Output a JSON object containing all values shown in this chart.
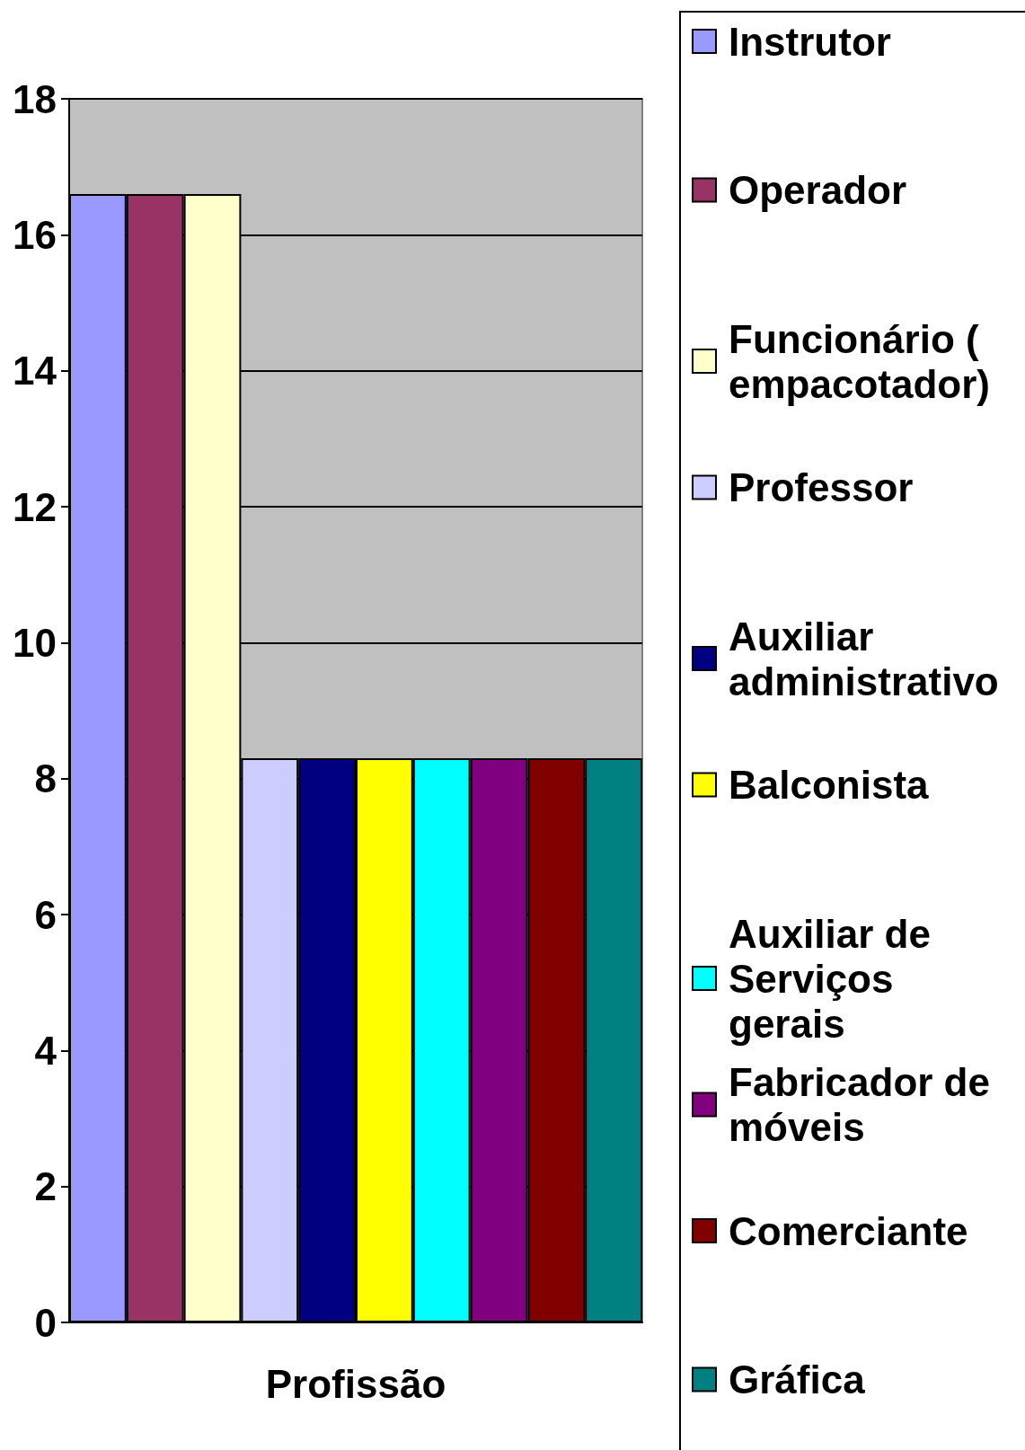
{
  "chart_data": {
    "type": "bar",
    "xlabel": "Profissão",
    "categories": [
      null,
      null,
      null,
      null,
      null,
      null,
      null,
      null,
      null,
      null
    ],
    "stacked": true,
    "series": [
      {
        "name": "Instrutor",
        "color": "#9999ff",
        "values": [
          16.6,
          null,
          null,
          null,
          null,
          null,
          null,
          null,
          null,
          null
        ]
      },
      {
        "name": "Operador",
        "color": "#993366",
        "values": [
          null,
          16.6,
          null,
          null,
          null,
          null,
          null,
          null,
          null,
          null
        ]
      },
      {
        "name": "Funcionário ( empacotador)",
        "color": "#ffffcc",
        "values": [
          null,
          null,
          16.6,
          null,
          null,
          null,
          null,
          null,
          null,
          null
        ]
      },
      {
        "name": "Professor",
        "color": "#ccccff",
        "values": [
          null,
          null,
          null,
          8.3,
          null,
          null,
          null,
          null,
          null,
          null
        ]
      },
      {
        "name": "Auxiliar administrativo",
        "color": "#000080",
        "values": [
          null,
          null,
          null,
          null,
          8.3,
          null,
          null,
          null,
          null,
          null
        ]
      },
      {
        "name": "Balconista",
        "color": "#ffff00",
        "values": [
          null,
          null,
          null,
          null,
          null,
          8.3,
          null,
          null,
          null,
          null
        ]
      },
      {
        "name": "Auxiliar de Serviços gerais",
        "color": "#00ffff",
        "values": [
          null,
          null,
          null,
          null,
          null,
          null,
          8.3,
          null,
          null,
          null
        ]
      },
      {
        "name": "Fabricador de móveis",
        "color": "#800080",
        "values": [
          null,
          null,
          null,
          null,
          null,
          null,
          null,
          8.3,
          null,
          null
        ]
      },
      {
        "name": "Comerciante",
        "color": "#800000",
        "values": [
          null,
          null,
          null,
          null,
          null,
          null,
          null,
          null,
          8.3,
          null
        ]
      },
      {
        "name": "Gráfica",
        "color": "#008080",
        "values": [
          null,
          null,
          null,
          null,
          null,
          null,
          null,
          null,
          null,
          8.3
        ]
      }
    ],
    "ylim": [
      0,
      18
    ],
    "yticks": [
      0,
      2,
      4,
      6,
      8,
      10,
      12,
      14,
      16,
      18
    ],
    "grid": "y",
    "legend": "right"
  }
}
